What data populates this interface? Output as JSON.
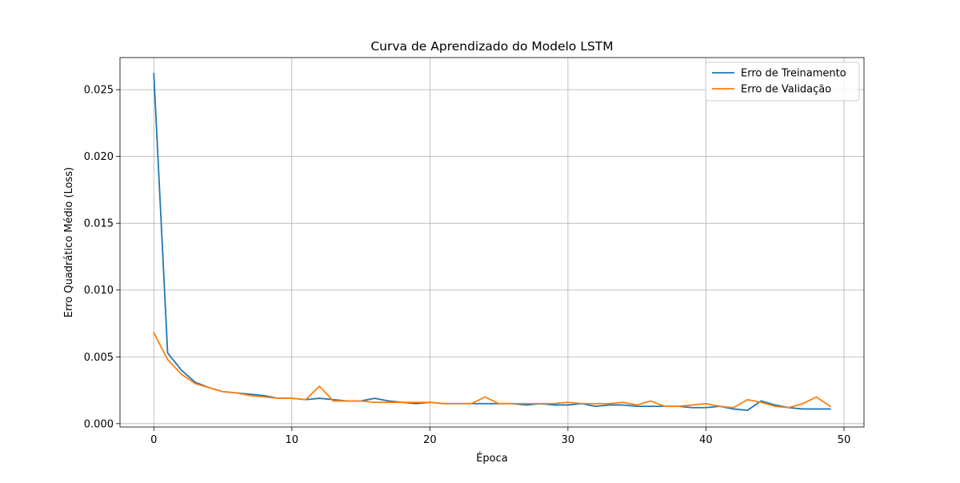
{
  "chart_data": {
    "type": "line",
    "title": "Curva de Aprendizado do Modelo LSTM",
    "xlabel": "Época",
    "ylabel": "Erro Quadrático Médio (Loss)",
    "xlim": [
      -2.45,
      51.45
    ],
    "ylim": [
      -0.00025,
      0.0274
    ],
    "xticks": [
      0,
      10,
      20,
      30,
      40,
      50
    ],
    "xtick_labels": [
      "0",
      "10",
      "20",
      "30",
      "40",
      "50"
    ],
    "yticks": [
      0.0,
      0.005,
      0.01,
      0.015,
      0.02,
      0.025
    ],
    "ytick_labels": [
      "0.000",
      "0.005",
      "0.010",
      "0.015",
      "0.020",
      "0.025"
    ],
    "grid": true,
    "legend_position": "top-right",
    "x": [
      0,
      1,
      2,
      3,
      4,
      5,
      6,
      7,
      8,
      9,
      10,
      11,
      12,
      13,
      14,
      15,
      16,
      17,
      18,
      19,
      20,
      21,
      22,
      23,
      24,
      25,
      26,
      27,
      28,
      29,
      30,
      31,
      32,
      33,
      34,
      35,
      36,
      37,
      38,
      39,
      40,
      41,
      42,
      43,
      44,
      45,
      46,
      47,
      48,
      49
    ],
    "series": [
      {
        "name": "Erro de Treinamento",
        "color": "#1f77b4",
        "values": [
          0.0262,
          0.0053,
          0.004,
          0.0031,
          0.0027,
          0.0024,
          0.0023,
          0.0022,
          0.0021,
          0.0019,
          0.0019,
          0.0018,
          0.0019,
          0.0018,
          0.0017,
          0.0017,
          0.0019,
          0.0017,
          0.0016,
          0.0015,
          0.0016,
          0.0015,
          0.0015,
          0.0015,
          0.0015,
          0.0015,
          0.0015,
          0.0014,
          0.0015,
          0.0014,
          0.0014,
          0.0015,
          0.0013,
          0.0014,
          0.0014,
          0.0013,
          0.0013,
          0.0013,
          0.0013,
          0.0012,
          0.0012,
          0.0013,
          0.0011,
          0.001,
          0.0017,
          0.0014,
          0.0012,
          0.0011,
          0.0011,
          0.0011
        ]
      },
      {
        "name": "Erro de Validação",
        "color": "#ff7f0e",
        "values": [
          0.0068,
          0.0048,
          0.0037,
          0.003,
          0.0027,
          0.0024,
          0.0023,
          0.0021,
          0.002,
          0.0019,
          0.0019,
          0.0018,
          0.0028,
          0.0017,
          0.0017,
          0.0017,
          0.0016,
          0.0016,
          0.0016,
          0.0016,
          0.0016,
          0.0015,
          0.0015,
          0.0015,
          0.002,
          0.0015,
          0.0015,
          0.0015,
          0.0015,
          0.0015,
          0.0016,
          0.0015,
          0.0015,
          0.0015,
          0.0016,
          0.0014,
          0.0017,
          0.0013,
          0.0013,
          0.0014,
          0.0015,
          0.0013,
          0.0012,
          0.0018,
          0.0016,
          0.0013,
          0.0012,
          0.0015,
          0.002,
          0.0013
        ]
      }
    ]
  }
}
